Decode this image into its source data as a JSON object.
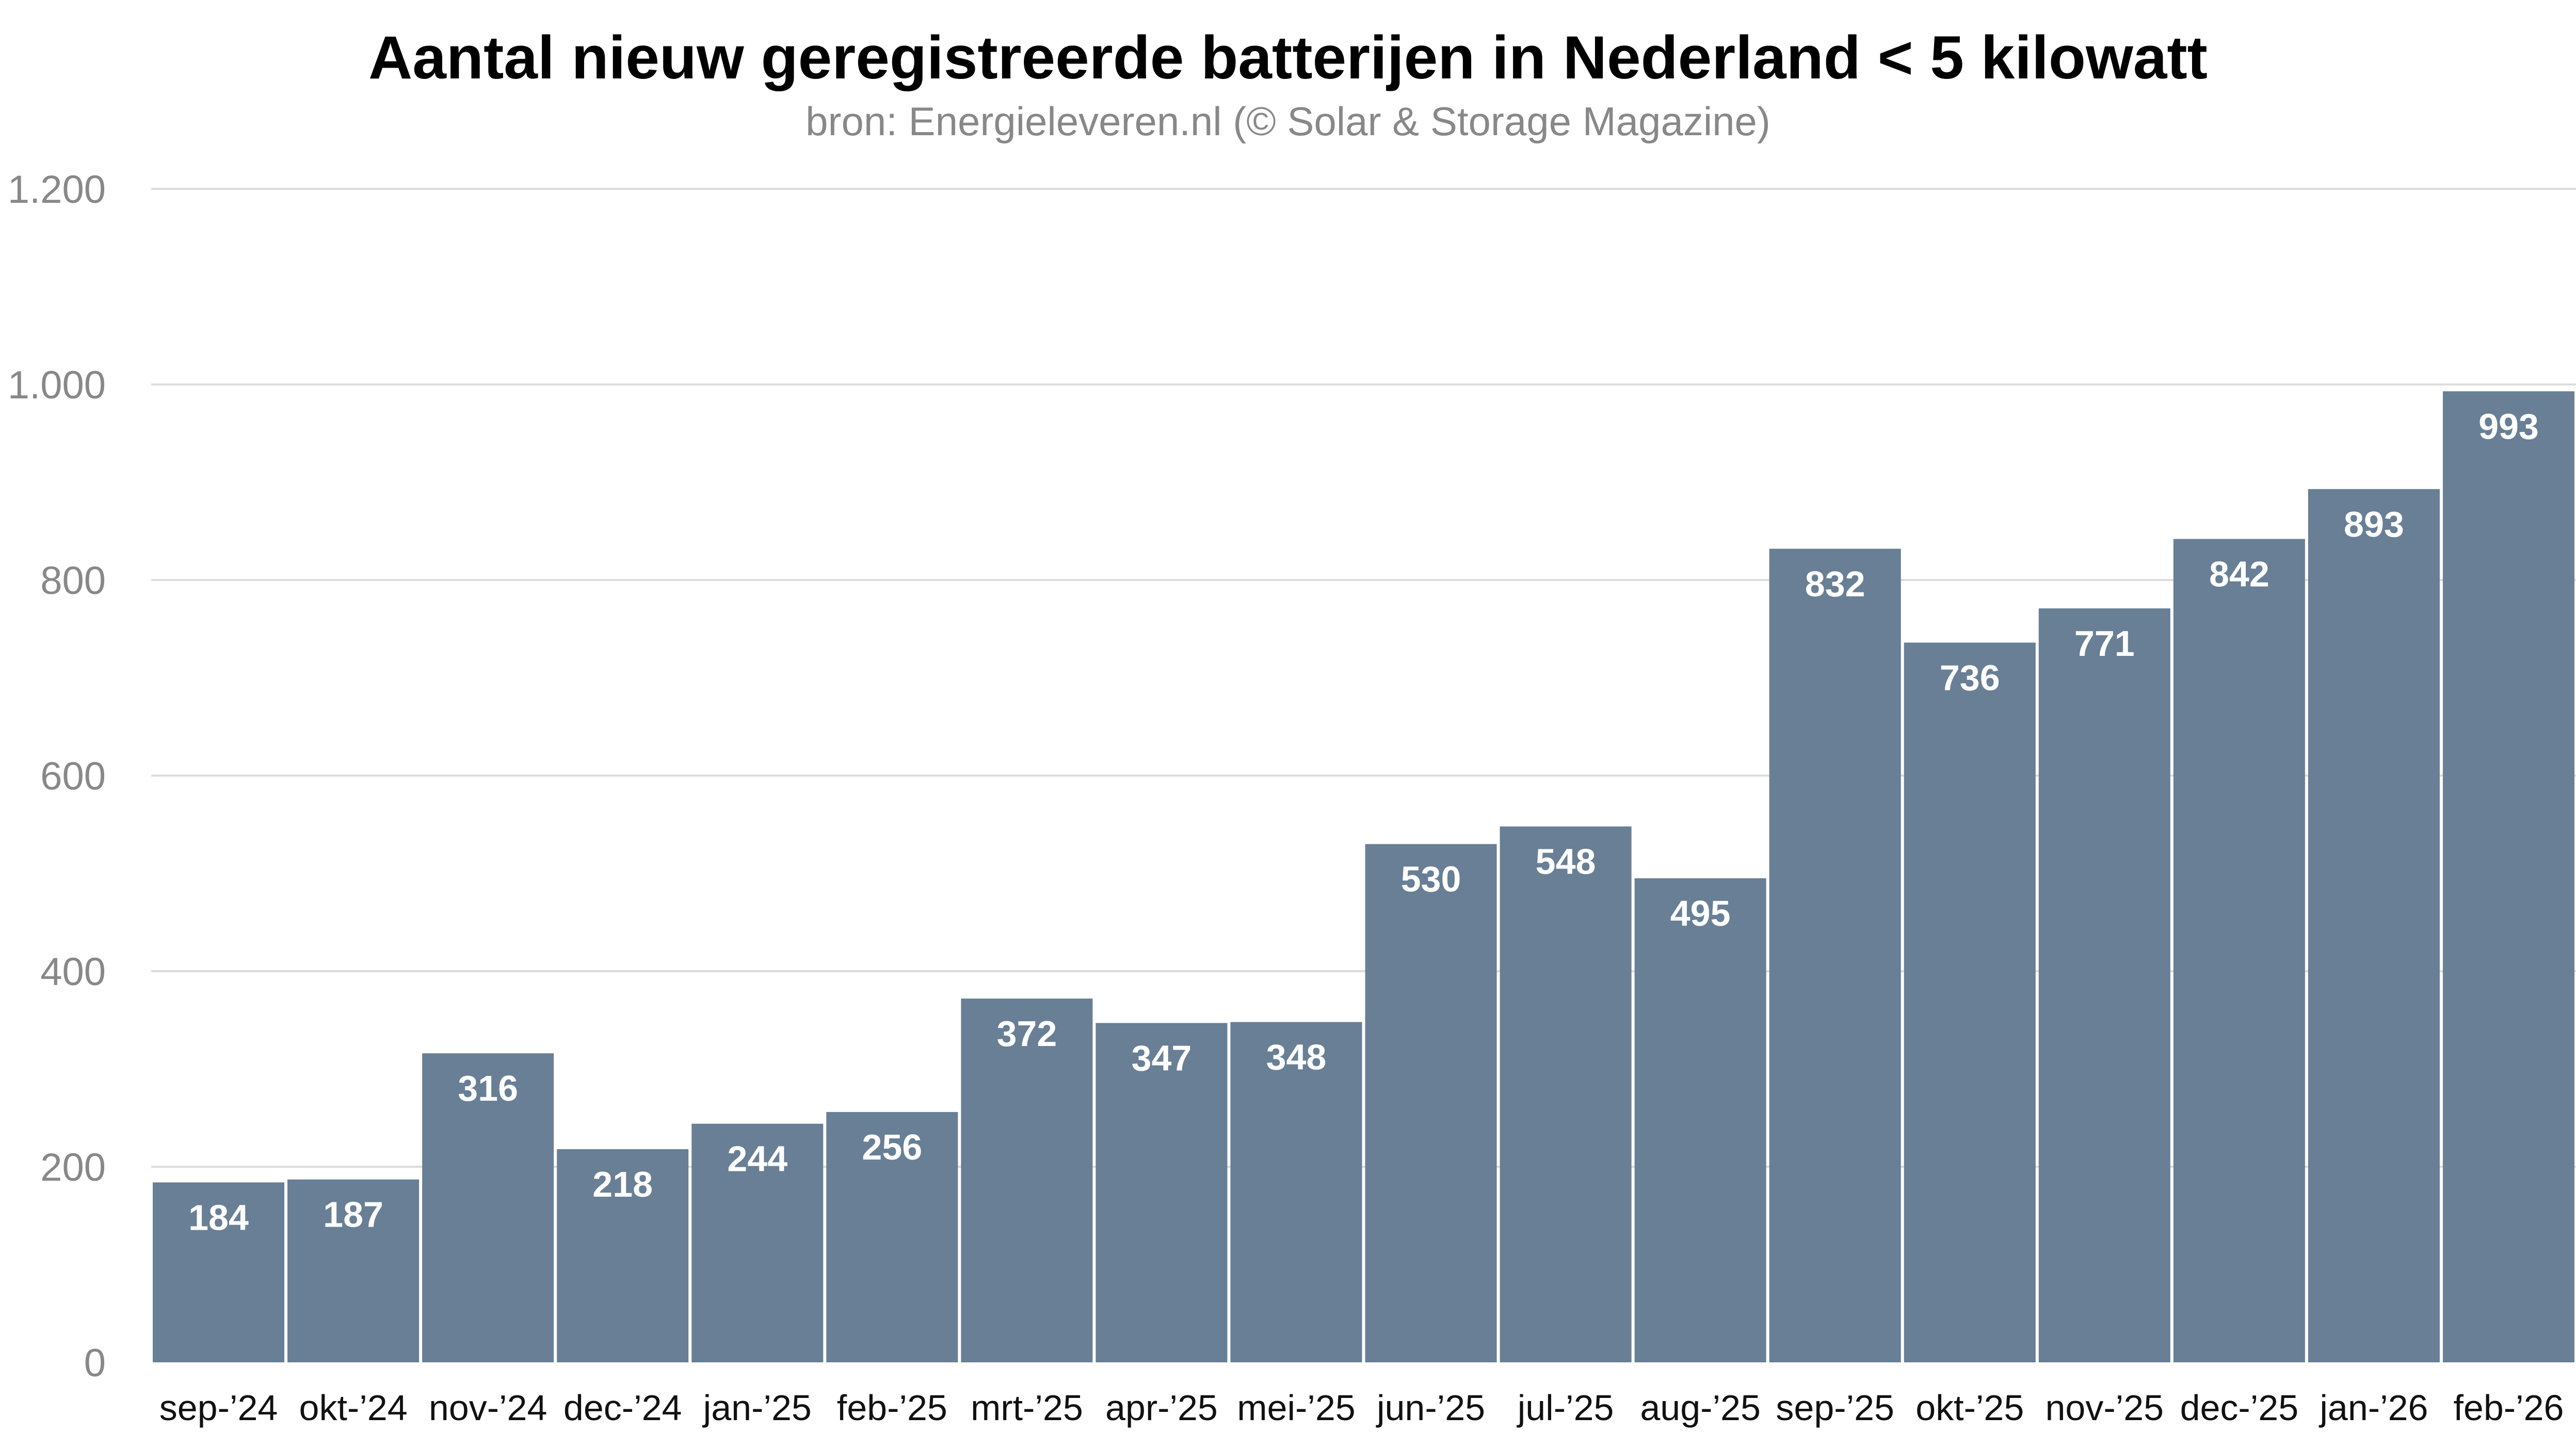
{
  "chart_data": {
    "type": "bar",
    "title": "Aantal nieuw geregistreerde batterijen in Nederland < 5 kilowatt",
    "subtitle": "bron: Energieleveren.nl (© Solar & Storage Magazine)",
    "xlabel": "",
    "ylabel": "",
    "ylim": [
      0,
      1200
    ],
    "yticks": [
      0,
      200,
      400,
      600,
      800,
      1000,
      1200
    ],
    "ytick_labels": [
      "0",
      "200",
      "400",
      "600",
      "800",
      "1.000",
      "1.200"
    ],
    "grid": true,
    "bar_color": "#687f95",
    "categories": [
      "sep-’24",
      "okt-’24",
      "nov-’24",
      "dec-’24",
      "jan-’25",
      "feb-’25",
      "mrt-’25",
      "apr-’25",
      "mei-’25",
      "jun-’25",
      "jul-’25",
      "aug-’25",
      "sep-’25",
      "okt-’25",
      "nov-’25",
      "dec-’25",
      "jan-’26",
      "feb-’26"
    ],
    "values": [
      184,
      187,
      316,
      218,
      244,
      256,
      372,
      347,
      348,
      530,
      548,
      495,
      832,
      736,
      771,
      842,
      893,
      993
    ],
    "data_labels": true
  }
}
